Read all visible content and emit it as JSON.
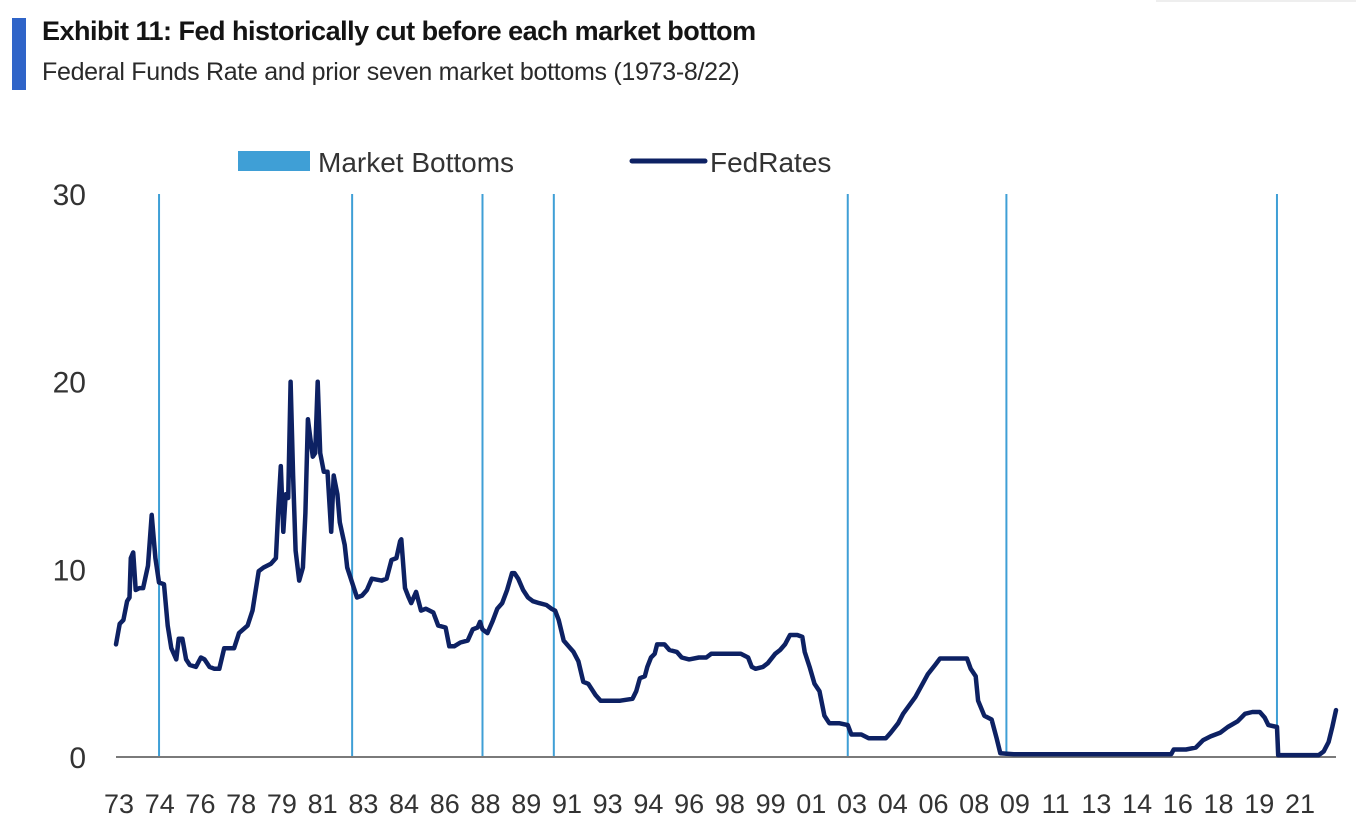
{
  "header": {
    "title": "Exhibit 11: Fed historically cut before each market bottom",
    "subtitle": "Federal Funds Rate and prior seven market bottoms (1973-8/22)"
  },
  "chart_data": {
    "type": "line",
    "title": "Exhibit 11: Fed historically cut before each market bottom",
    "subtitle": "Federal Funds Rate and prior seven market bottoms (1973-8/22)",
    "xlabel": "",
    "ylabel": "",
    "ylim": [
      0,
      30
    ],
    "yticks": [
      0,
      10,
      20,
      30
    ],
    "xlim": [
      1973.0,
      2022.6
    ],
    "xtick_labels": [
      "73",
      "74",
      "76",
      "78",
      "79",
      "81",
      "83",
      "84",
      "86",
      "88",
      "89",
      "91",
      "93",
      "94",
      "96",
      "98",
      "99",
      "01",
      "03",
      "04",
      "06",
      "08",
      "09",
      "11",
      "13",
      "14",
      "16",
      "18",
      "19",
      "21"
    ],
    "legend": {
      "position": "top-center",
      "entries": [
        "Market Bottoms",
        "FedRates"
      ]
    },
    "colors": {
      "fed_rates": "#0d2163",
      "market_bottoms": "#3f9fd6",
      "axis": "#7a7a7a"
    },
    "market_bottoms": [
      1974.75,
      1982.6,
      1987.9,
      1990.8,
      2002.75,
      2009.2,
      2020.2
    ],
    "series": [
      {
        "name": "FedRates",
        "points": [
          [
            1973.0,
            6.0
          ],
          [
            1973.15,
            7.1
          ],
          [
            1973.3,
            7.3
          ],
          [
            1973.45,
            8.3
          ],
          [
            1973.55,
            8.5
          ],
          [
            1973.6,
            10.6
          ],
          [
            1973.7,
            10.9
          ],
          [
            1973.8,
            8.9
          ],
          [
            1973.95,
            9.0
          ],
          [
            1974.1,
            9.0
          ],
          [
            1974.3,
            10.2
          ],
          [
            1974.45,
            12.9
          ],
          [
            1974.6,
            10.6
          ],
          [
            1974.75,
            9.3
          ],
          [
            1974.95,
            9.2
          ],
          [
            1975.1,
            7.0
          ],
          [
            1975.25,
            5.8
          ],
          [
            1975.45,
            5.2
          ],
          [
            1975.55,
            6.3
          ],
          [
            1975.7,
            6.3
          ],
          [
            1975.85,
            5.2
          ],
          [
            1976.0,
            4.9
          ],
          [
            1976.25,
            4.8
          ],
          [
            1976.45,
            5.3
          ],
          [
            1976.6,
            5.2
          ],
          [
            1976.8,
            4.8
          ],
          [
            1977.0,
            4.7
          ],
          [
            1977.2,
            4.7
          ],
          [
            1977.4,
            5.8
          ],
          [
            1977.8,
            5.8
          ],
          [
            1978.0,
            6.6
          ],
          [
            1978.35,
            7.0
          ],
          [
            1978.55,
            7.8
          ],
          [
            1978.8,
            9.9
          ],
          [
            1979.0,
            10.1
          ],
          [
            1979.3,
            10.3
          ],
          [
            1979.5,
            10.6
          ],
          [
            1979.6,
            13.2
          ],
          [
            1979.7,
            15.5
          ],
          [
            1979.8,
            12.0
          ],
          [
            1979.9,
            14.0
          ],
          [
            1980.0,
            13.8
          ],
          [
            1980.1,
            20.0
          ],
          [
            1980.2,
            15.0
          ],
          [
            1980.3,
            11.0
          ],
          [
            1980.45,
            9.4
          ],
          [
            1980.6,
            10.1
          ],
          [
            1980.7,
            13.0
          ],
          [
            1980.8,
            18.0
          ],
          [
            1980.9,
            17.0
          ],
          [
            1981.0,
            16.0
          ],
          [
            1981.1,
            16.2
          ],
          [
            1981.2,
            20.0
          ],
          [
            1981.3,
            16.2
          ],
          [
            1981.45,
            15.2
          ],
          [
            1981.6,
            15.2
          ],
          [
            1981.75,
            12.0
          ],
          [
            1981.85,
            15.0
          ],
          [
            1982.0,
            14.0
          ],
          [
            1982.1,
            12.5
          ],
          [
            1982.3,
            11.3
          ],
          [
            1982.4,
            10.1
          ],
          [
            1982.6,
            9.3
          ],
          [
            1982.8,
            8.5
          ],
          [
            1983.0,
            8.6
          ],
          [
            1983.2,
            8.9
          ],
          [
            1983.4,
            9.5
          ],
          [
            1983.8,
            9.4
          ],
          [
            1984.0,
            9.5
          ],
          [
            1984.2,
            10.5
          ],
          [
            1984.4,
            10.6
          ],
          [
            1984.55,
            11.5
          ],
          [
            1984.6,
            11.6
          ],
          [
            1984.75,
            9.0
          ],
          [
            1984.9,
            8.5
          ],
          [
            1985.0,
            8.2
          ],
          [
            1985.2,
            8.8
          ],
          [
            1985.4,
            7.8
          ],
          [
            1985.6,
            7.9
          ],
          [
            1985.9,
            7.7
          ],
          [
            1986.1,
            7.0
          ],
          [
            1986.4,
            6.9
          ],
          [
            1986.55,
            5.9
          ],
          [
            1986.75,
            5.9
          ],
          [
            1987.0,
            6.1
          ],
          [
            1987.3,
            6.2
          ],
          [
            1987.5,
            6.8
          ],
          [
            1987.7,
            6.9
          ],
          [
            1987.8,
            7.2
          ],
          [
            1987.9,
            6.8
          ],
          [
            1988.1,
            6.6
          ],
          [
            1988.3,
            7.2
          ],
          [
            1988.5,
            7.9
          ],
          [
            1988.7,
            8.2
          ],
          [
            1988.9,
            8.9
          ],
          [
            1989.1,
            9.8
          ],
          [
            1989.2,
            9.8
          ],
          [
            1989.35,
            9.5
          ],
          [
            1989.55,
            8.9
          ],
          [
            1989.75,
            8.5
          ],
          [
            1989.95,
            8.3
          ],
          [
            1990.2,
            8.2
          ],
          [
            1990.5,
            8.1
          ],
          [
            1990.7,
            7.9
          ],
          [
            1990.85,
            7.8
          ],
          [
            1991.0,
            7.3
          ],
          [
            1991.2,
            6.2
          ],
          [
            1991.4,
            5.9
          ],
          [
            1991.6,
            5.6
          ],
          [
            1991.8,
            5.1
          ],
          [
            1992.0,
            4.0
          ],
          [
            1992.2,
            3.9
          ],
          [
            1992.5,
            3.3
          ],
          [
            1992.7,
            3.0
          ],
          [
            1993.0,
            3.0
          ],
          [
            1993.5,
            3.0
          ],
          [
            1994.0,
            3.1
          ],
          [
            1994.15,
            3.5
          ],
          [
            1994.3,
            4.2
          ],
          [
            1994.5,
            4.3
          ],
          [
            1994.6,
            4.8
          ],
          [
            1994.75,
            5.3
          ],
          [
            1994.9,
            5.5
          ],
          [
            1995.0,
            6.0
          ],
          [
            1995.3,
            6.0
          ],
          [
            1995.5,
            5.7
          ],
          [
            1995.8,
            5.6
          ],
          [
            1996.0,
            5.3
          ],
          [
            1996.3,
            5.2
          ],
          [
            1996.7,
            5.3
          ],
          [
            1997.0,
            5.3
          ],
          [
            1997.2,
            5.5
          ],
          [
            1997.6,
            5.5
          ],
          [
            1998.0,
            5.5
          ],
          [
            1998.4,
            5.5
          ],
          [
            1998.7,
            5.3
          ],
          [
            1998.85,
            4.8
          ],
          [
            1999.0,
            4.7
          ],
          [
            1999.3,
            4.8
          ],
          [
            1999.5,
            5.0
          ],
          [
            1999.8,
            5.5
          ],
          [
            2000.0,
            5.7
          ],
          [
            2000.2,
            6.0
          ],
          [
            2000.4,
            6.5
          ],
          [
            2000.7,
            6.5
          ],
          [
            2000.9,
            6.4
          ],
          [
            2001.0,
            5.6
          ],
          [
            2001.2,
            4.8
          ],
          [
            2001.4,
            3.9
          ],
          [
            2001.6,
            3.5
          ],
          [
            2001.8,
            2.2
          ],
          [
            2002.0,
            1.8
          ],
          [
            2002.4,
            1.8
          ],
          [
            2002.75,
            1.7
          ],
          [
            2002.9,
            1.2
          ],
          [
            2003.3,
            1.2
          ],
          [
            2003.6,
            1.0
          ],
          [
            2004.0,
            1.0
          ],
          [
            2004.3,
            1.0
          ],
          [
            2004.5,
            1.3
          ],
          [
            2004.8,
            1.8
          ],
          [
            2005.0,
            2.3
          ],
          [
            2005.5,
            3.2
          ],
          [
            2006.0,
            4.4
          ],
          [
            2006.3,
            4.9
          ],
          [
            2006.5,
            5.25
          ],
          [
            2007.0,
            5.25
          ],
          [
            2007.6,
            5.25
          ],
          [
            2007.75,
            4.7
          ],
          [
            2007.95,
            4.3
          ],
          [
            2008.05,
            3.0
          ],
          [
            2008.3,
            2.2
          ],
          [
            2008.6,
            2.0
          ],
          [
            2008.8,
            1.0
          ],
          [
            2008.95,
            0.2
          ],
          [
            2009.5,
            0.15
          ],
          [
            2012.0,
            0.15
          ],
          [
            2015.0,
            0.15
          ],
          [
            2015.9,
            0.15
          ],
          [
            2016.0,
            0.4
          ],
          [
            2016.5,
            0.4
          ],
          [
            2016.9,
            0.5
          ],
          [
            2017.2,
            0.9
          ],
          [
            2017.5,
            1.1
          ],
          [
            2017.9,
            1.3
          ],
          [
            2018.2,
            1.6
          ],
          [
            2018.6,
            1.9
          ],
          [
            2018.9,
            2.3
          ],
          [
            2019.2,
            2.4
          ],
          [
            2019.5,
            2.4
          ],
          [
            2019.7,
            2.1
          ],
          [
            2019.85,
            1.7
          ],
          [
            2020.2,
            1.6
          ],
          [
            2020.25,
            0.1
          ],
          [
            2021.0,
            0.1
          ],
          [
            2021.9,
            0.1
          ],
          [
            2022.1,
            0.3
          ],
          [
            2022.3,
            0.8
          ],
          [
            2022.45,
            1.6
          ],
          [
            2022.6,
            2.5
          ]
        ]
      }
    ]
  }
}
